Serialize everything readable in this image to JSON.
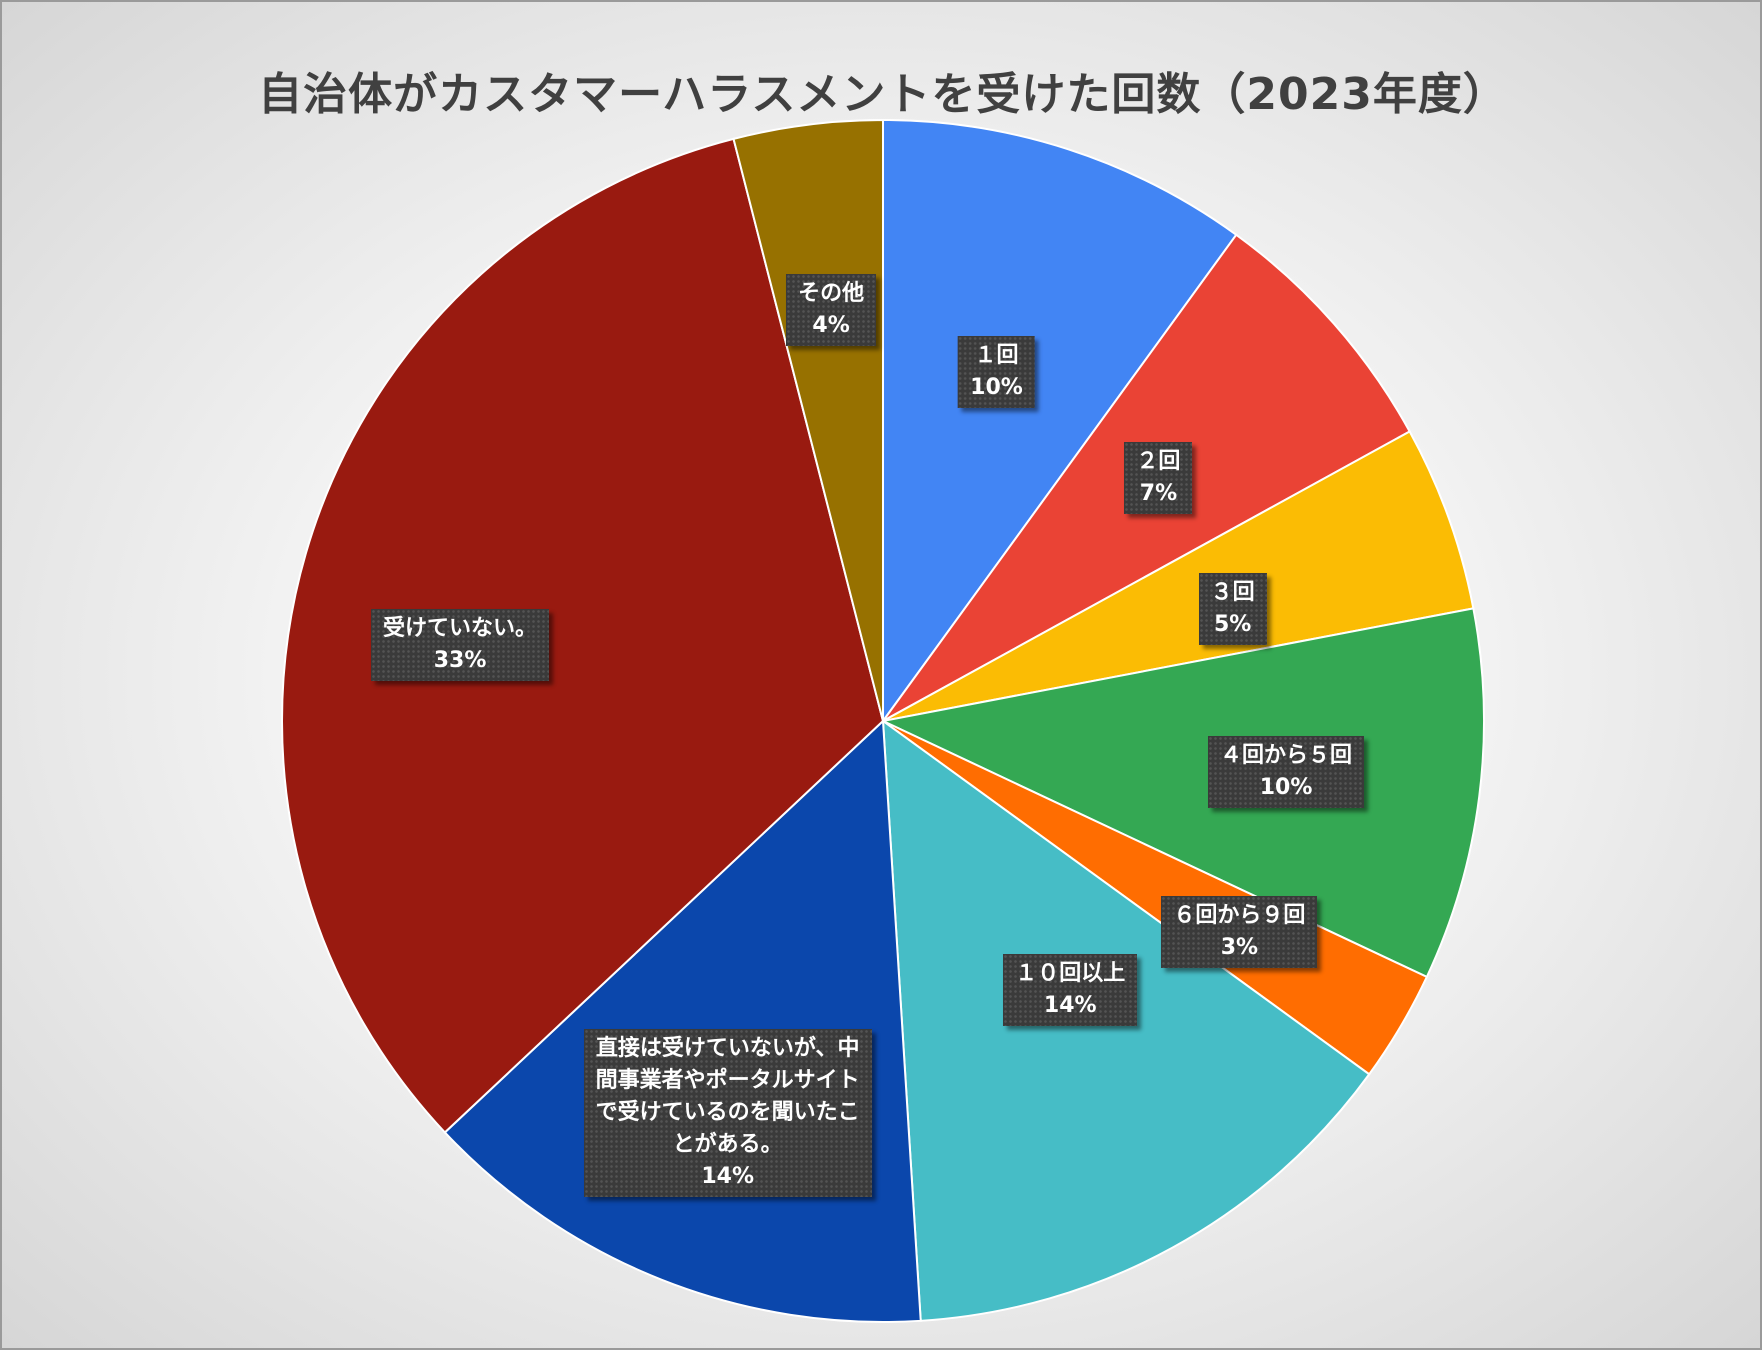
{
  "chart_data": {
    "type": "pie",
    "title": "自治体がカスタマーハラスメントを受けた回数（2023年度）",
    "start_angle_deg": 0,
    "direction": "clockwise",
    "slices": [
      {
        "label": "１回",
        "display_label": "１回",
        "value": 10,
        "percent_label": "10%",
        "color": "#4285F4"
      },
      {
        "label": "２回",
        "display_label": "２回",
        "value": 7,
        "percent_label": "7%",
        "color": "#EA4335"
      },
      {
        "label": "３回",
        "display_label": "３回",
        "value": 5,
        "percent_label": "5%",
        "color": "#FBBC04"
      },
      {
        "label": "４回から５回",
        "display_label": "４回から５回",
        "value": 10,
        "percent_label": "10%",
        "color": "#34A853"
      },
      {
        "label": "６回から９回",
        "display_label": "６回から９回",
        "value": 3,
        "percent_label": "3%",
        "color": "#FF6D01"
      },
      {
        "label": "１０回以上",
        "display_label": "１０回以上",
        "value": 14,
        "percent_label": "14%",
        "color": "#46BDC6"
      },
      {
        "label": "直接は受けていないが、中間事業者やポータルサイトで受けているのを聞いたことがある。",
        "display_label": "直接は受けていないが、中\n間事業者やポータルサイト\nで受けているのを聞いたこ\nとがある。",
        "value": 14,
        "percent_label": "14%",
        "color": "#0B47AC"
      },
      {
        "label": "受けていない。",
        "display_label": "受けていない。",
        "value": 33,
        "percent_label": "33%",
        "color": "#991A10"
      },
      {
        "label": "その他",
        "display_label": "その他",
        "value": 4,
        "percent_label": "4%",
        "color": "#977100"
      }
    ]
  }
}
